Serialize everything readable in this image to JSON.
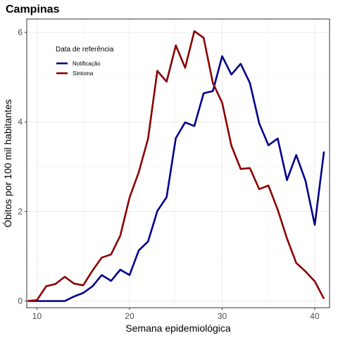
{
  "chart_data": {
    "type": "line",
    "title": "Campinas",
    "xlabel": "Semana epidemiológica",
    "ylabel": "Óbitos por 100 mil habitantes",
    "xlim": [
      8.9,
      41.6
    ],
    "ylim": [
      -0.15,
      6.3
    ],
    "x_ticks": [
      10,
      20,
      30,
      40
    ],
    "y_ticks": [
      0,
      2,
      4,
      6
    ],
    "grid": true,
    "legend": {
      "title": "Data de referência",
      "placement": "top-left"
    },
    "x": [
      9,
      10,
      11,
      12,
      13,
      14,
      15,
      16,
      17,
      18,
      19,
      20,
      21,
      22,
      23,
      24,
      25,
      26,
      27,
      28,
      29,
      30,
      31,
      32,
      33,
      34,
      35,
      36,
      37,
      38,
      39,
      40,
      41
    ],
    "series": [
      {
        "name": "Notificação",
        "color": "#00008b",
        "values": [
          0.0,
          0.0,
          0.0,
          0.0,
          0.0,
          0.1,
          0.18,
          0.33,
          0.58,
          0.45,
          0.7,
          0.58,
          1.13,
          1.33,
          2.01,
          2.32,
          3.64,
          3.99,
          3.91,
          4.64,
          4.69,
          5.47,
          5.06,
          5.3,
          4.87,
          3.97,
          3.48,
          3.63,
          2.7,
          3.26,
          2.69,
          1.7,
          3.34
        ]
      },
      {
        "name": "Sintoma",
        "color": "#8b0000",
        "values": [
          0.0,
          0.02,
          0.33,
          0.38,
          0.54,
          0.39,
          0.35,
          0.68,
          0.97,
          1.04,
          1.46,
          2.31,
          2.88,
          3.63,
          5.14,
          4.9,
          5.71,
          5.21,
          6.03,
          5.88,
          4.87,
          4.43,
          3.47,
          2.95,
          2.97,
          2.5,
          2.58,
          2.04,
          1.4,
          0.85,
          0.66,
          0.44,
          0.05
        ]
      }
    ]
  }
}
